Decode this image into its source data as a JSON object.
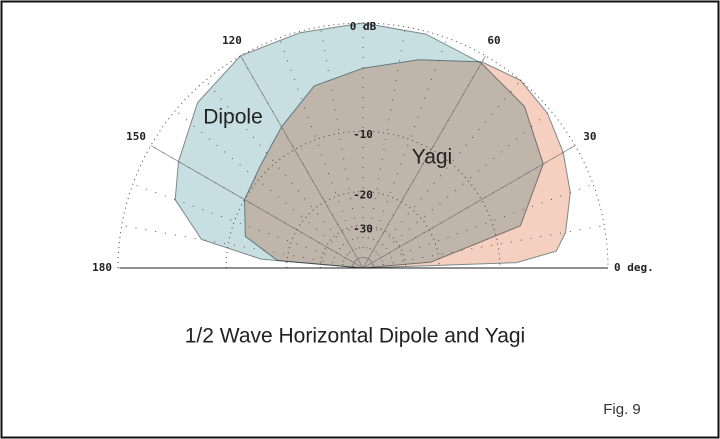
{
  "chart_data": {
    "type": "polar",
    "title": "1/2 Wave Horizontal Dipole and Yagi",
    "figure_label": "Fig. 9",
    "rscale": "arrl log",
    "rlim": [
      -60,
      0
    ],
    "rticks": [
      {
        "value": 0,
        "label": "0 dB"
      },
      -10,
      -20,
      -30
    ],
    "thetalim": [
      0,
      180
    ],
    "thetaticks": [
      {
        "value": 0,
        "label": "0 deg."
      },
      30,
      60,
      120,
      150,
      180
    ],
    "grid": true,
    "series": [
      {
        "name": "Dipole",
        "color": "#c8dfe2",
        "theta": [
          0,
          5,
          15,
          30,
          45,
          60,
          75,
          90,
          105,
          120,
          135,
          150,
          160,
          170,
          175,
          180
        ],
        "values": [
          -60,
          -22,
          -7,
          -2.8,
          -1.2,
          -0.6,
          -0.2,
          0,
          -0.1,
          0,
          -0.8,
          -2.4,
          -3.5,
          -6.9,
          -15,
          -60
        ]
      },
      {
        "name": "Yagi",
        "color": "#f5cfc0",
        "theta": [
          0,
          2,
          5,
          10,
          20,
          30,
          40,
          50,
          60,
          75,
          90,
          105,
          120,
          135,
          150,
          165,
          175,
          180
        ],
        "values": [
          -60,
          -8,
          -4,
          -3,
          -1.8,
          -1,
          -0.3,
          0,
          -0.5,
          -2.2,
          -3.5,
          -4.5,
          -7,
          -9,
          -10,
          -12,
          -18,
          -60
        ]
      }
    ]
  }
}
